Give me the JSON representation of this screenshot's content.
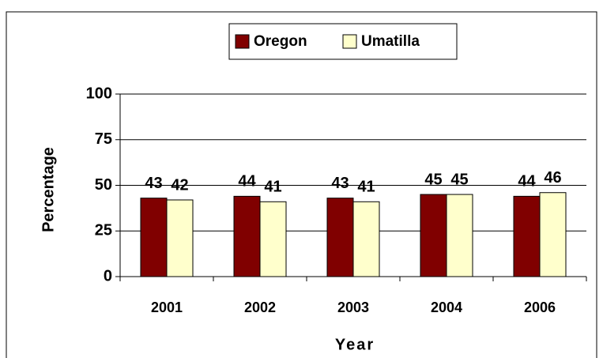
{
  "chart_data": {
    "type": "bar",
    "categories": [
      "2001",
      "2002",
      "2003",
      "2004",
      "2006"
    ],
    "series": [
      {
        "name": "Oregon",
        "color": "#800000",
        "values": [
          43,
          44,
          43,
          45,
          44
        ]
      },
      {
        "name": "Umatilla",
        "color": "#ffffcc",
        "values": [
          42,
          41,
          41,
          45,
          46
        ]
      }
    ],
    "x_label": "Year",
    "y_label": "Percentage",
    "ylim": [
      0,
      100
    ],
    "yticks": [
      0,
      25,
      50,
      75,
      100
    ],
    "grid": true,
    "legend": "top"
  }
}
